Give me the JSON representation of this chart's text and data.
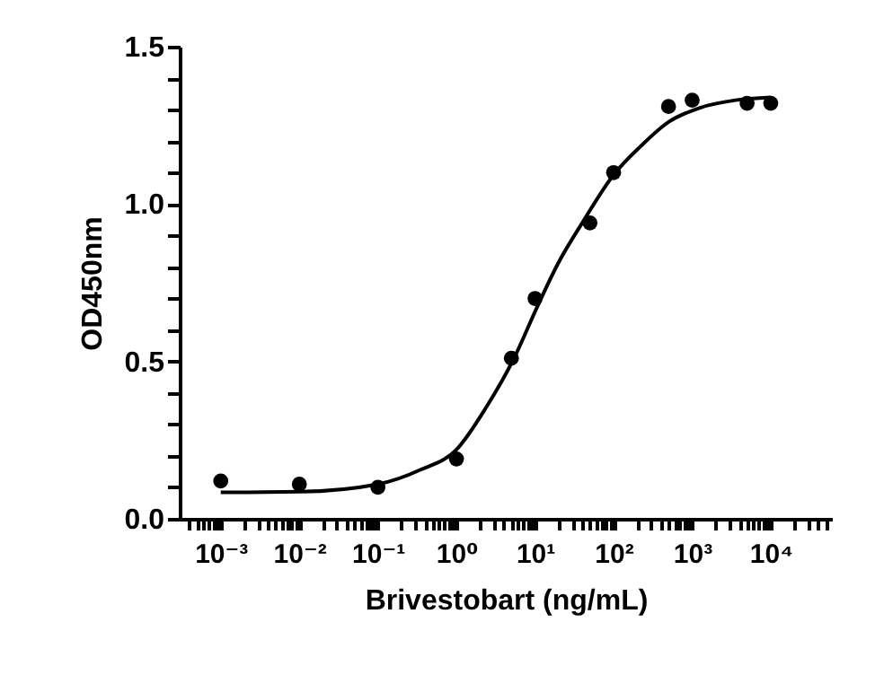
{
  "chart_data": {
    "type": "scatter",
    "xlabel": "Brivestobart  (ng/mL)",
    "ylabel": "OD450nm",
    "log": "x",
    "grid": false,
    "xlim": [
      0.0003,
      60000
    ],
    "ylim": [
      0,
      1.5
    ],
    "xticks": [
      {
        "value": 0.0004,
        "label": null
      },
      {
        "value": 0.0005,
        "label": null
      },
      {
        "value": 0.0006,
        "label": null
      },
      {
        "value": 0.0007,
        "label": null
      },
      {
        "value": 0.0008,
        "label": null
      },
      {
        "value": 0.0009,
        "label": null
      },
      {
        "value": 0.001,
        "label": "10⁻³"
      },
      {
        "value": 0.002,
        "label": null
      },
      {
        "value": 0.003,
        "label": null
      },
      {
        "value": 0.004,
        "label": null
      },
      {
        "value": 0.005,
        "label": null
      },
      {
        "value": 0.006,
        "label": null
      },
      {
        "value": 0.007,
        "label": null
      },
      {
        "value": 0.008,
        "label": null
      },
      {
        "value": 0.009,
        "label": null
      },
      {
        "value": 0.01,
        "label": "10⁻²"
      },
      {
        "value": 0.02,
        "label": null
      },
      {
        "value": 0.03,
        "label": null
      },
      {
        "value": 0.04,
        "label": null
      },
      {
        "value": 0.05,
        "label": null
      },
      {
        "value": 0.06,
        "label": null
      },
      {
        "value": 0.07,
        "label": null
      },
      {
        "value": 0.08,
        "label": null
      },
      {
        "value": 0.09,
        "label": null
      },
      {
        "value": 0.1,
        "label": "10⁻¹"
      },
      {
        "value": 0.2,
        "label": null
      },
      {
        "value": 0.3,
        "label": null
      },
      {
        "value": 0.4,
        "label": null
      },
      {
        "value": 0.5,
        "label": null
      },
      {
        "value": 0.6,
        "label": null
      },
      {
        "value": 0.7,
        "label": null
      },
      {
        "value": 0.8,
        "label": null
      },
      {
        "value": 0.9,
        "label": null
      },
      {
        "value": 1,
        "label": "10⁰"
      },
      {
        "value": 2,
        "label": null
      },
      {
        "value": 3,
        "label": null
      },
      {
        "value": 4,
        "label": null
      },
      {
        "value": 5,
        "label": null
      },
      {
        "value": 6,
        "label": null
      },
      {
        "value": 7,
        "label": null
      },
      {
        "value": 8,
        "label": null
      },
      {
        "value": 9,
        "label": null
      },
      {
        "value": 10,
        "label": "10¹"
      },
      {
        "value": 20,
        "label": null
      },
      {
        "value": 30,
        "label": null
      },
      {
        "value": 40,
        "label": null
      },
      {
        "value": 50,
        "label": null
      },
      {
        "value": 60,
        "label": null
      },
      {
        "value": 70,
        "label": null
      },
      {
        "value": 80,
        "label": null
      },
      {
        "value": 90,
        "label": null
      },
      {
        "value": 100,
        "label": "10²"
      },
      {
        "value": 200,
        "label": null
      },
      {
        "value": 300,
        "label": null
      },
      {
        "value": 400,
        "label": null
      },
      {
        "value": 500,
        "label": null
      },
      {
        "value": 600,
        "label": null
      },
      {
        "value": 700,
        "label": null
      },
      {
        "value": 800,
        "label": null
      },
      {
        "value": 900,
        "label": null
      },
      {
        "value": 1000,
        "label": "10³"
      },
      {
        "value": 2000,
        "label": null
      },
      {
        "value": 3000,
        "label": null
      },
      {
        "value": 4000,
        "label": null
      },
      {
        "value": 5000,
        "label": null
      },
      {
        "value": 6000,
        "label": null
      },
      {
        "value": 7000,
        "label": null
      },
      {
        "value": 8000,
        "label": null
      },
      {
        "value": 9000,
        "label": null
      },
      {
        "value": 10000,
        "label": "10⁴"
      },
      {
        "value": 20000,
        "label": null
      },
      {
        "value": 30000,
        "label": null
      },
      {
        "value": 40000,
        "label": null
      },
      {
        "value": 50000,
        "label": null
      }
    ],
    "yticks": [
      {
        "value": 0,
        "label": "0.0"
      },
      {
        "value": 0.1,
        "label": null
      },
      {
        "value": 0.2,
        "label": null
      },
      {
        "value": 0.3,
        "label": null
      },
      {
        "value": 0.4,
        "label": null
      },
      0.5,
      {
        "value": 0.6,
        "label": null
      },
      {
        "value": 0.7,
        "label": null
      },
      {
        "value": 0.8,
        "label": null
      },
      {
        "value": 0.9,
        "label": null
      },
      {
        "value": 1,
        "label": "1.0"
      },
      {
        "value": 1.1,
        "label": null
      },
      {
        "value": 1.2,
        "label": null
      },
      {
        "value": 1.3,
        "label": null
      },
      {
        "value": 1.4,
        "label": null
      },
      {
        "value": 1.5,
        "label": "1.5"
      }
    ],
    "series": [
      {
        "color": "#000000",
        "marker": "circle",
        "x": [
          0.001,
          0.01,
          0.1,
          1,
          5,
          10,
          50,
          100,
          500,
          1000,
          5000,
          10000
        ],
        "values": [
          0.12,
          0.11,
          0.1,
          0.19,
          0.51,
          0.7,
          0.94,
          1.1,
          1.31,
          1.33,
          1.32,
          1.32
        ]
      },
      {
        "type": "line",
        "color": "#000000",
        "marker": "none",
        "x": [
          0.001,
          0.01,
          0.1,
          0.35,
          1,
          2.4,
          5.4,
          10.5,
          19.5,
          41,
          100,
          220,
          510,
          1260,
          3550,
          10000
        ],
        "values": [
          0.084,
          0.086,
          0.11,
          0.156,
          0.22,
          0.355,
          0.51,
          0.67,
          0.81,
          0.945,
          1.093,
          1.183,
          1.262,
          1.306,
          1.33,
          1.339
        ]
      }
    ]
  }
}
